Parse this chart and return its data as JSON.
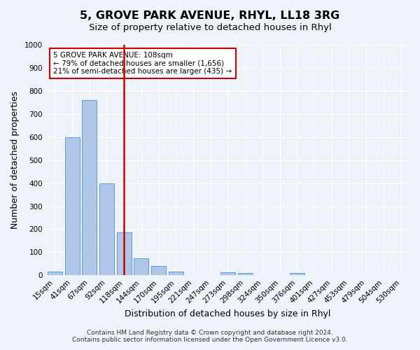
{
  "title1": "5, GROVE PARK AVENUE, RHYL, LL18 3RG",
  "title2": "Size of property relative to detached houses in Rhyl",
  "xlabel": "Distribution of detached houses by size in Rhyl",
  "ylabel": "Number of detached properties",
  "bar_labels": [
    "15sqm",
    "41sqm",
    "67sqm",
    "92sqm",
    "118sqm",
    "144sqm",
    "170sqm",
    "195sqm",
    "221sqm",
    "247sqm",
    "273sqm",
    "298sqm",
    "324sqm",
    "350sqm",
    "376sqm",
    "401sqm",
    "427sqm",
    "453sqm",
    "479sqm",
    "504sqm",
    "530sqm"
  ],
  "bar_values": [
    15,
    600,
    760,
    400,
    185,
    75,
    40,
    15,
    0,
    0,
    12,
    10,
    0,
    0,
    10,
    0,
    0,
    0,
    0,
    0,
    0
  ],
  "bar_color": "#aec6e8",
  "bar_edge_color": "#5b9bd5",
  "vline_x": 4,
  "vline_color": "#cc0000",
  "ylim": [
    0,
    1000
  ],
  "yticks": [
    0,
    100,
    200,
    300,
    400,
    500,
    600,
    700,
    800,
    900,
    1000
  ],
  "annotation_title": "5 GROVE PARK AVENUE: 108sqm",
  "annotation_line1": "← 79% of detached houses are smaller (1,656)",
  "annotation_line2": "21% of semi-detached houses are larger (435) →",
  "annotation_box_color": "#ffffff",
  "annotation_box_edge": "#cc0000",
  "footer1": "Contains HM Land Registry data © Crown copyright and database right 2024.",
  "footer2": "Contains public sector information licensed under the Open Government Licence v3.0.",
  "bg_color": "#eef2f9",
  "grid_color": "#ffffff",
  "title1_fontsize": 11.5,
  "title2_fontsize": 9.5,
  "xlabel_fontsize": 9,
  "ylabel_fontsize": 9,
  "tick_fontsize": 7.5,
  "footer_fontsize": 6.5
}
